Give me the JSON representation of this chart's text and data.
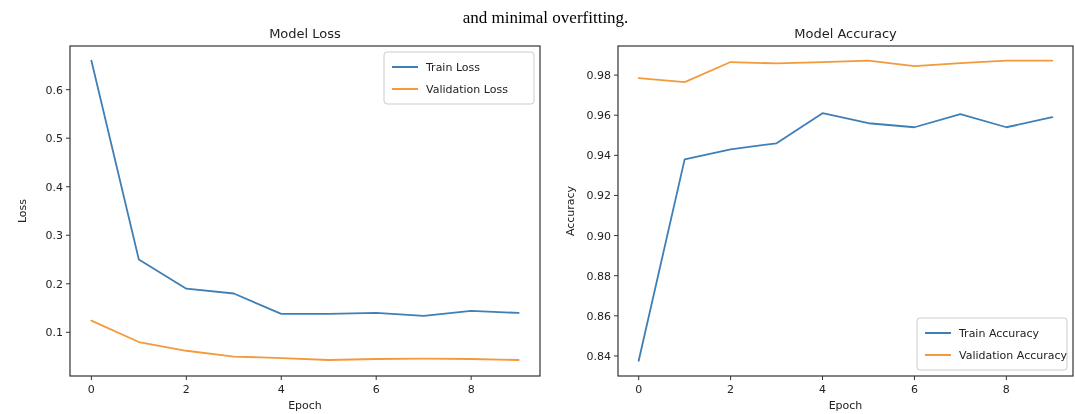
{
  "chart_data": [
    {
      "type": "line",
      "title": "Model Loss",
      "xlabel": "Epoch",
      "ylabel": "Loss",
      "annotations": [
        "and minimal overfitting."
      ],
      "x": [
        0,
        1,
        2,
        3,
        4,
        5,
        6,
        7,
        8,
        9
      ],
      "xlim": [
        -0.45,
        9.45
      ],
      "xticks": [
        0,
        2,
        4,
        6,
        8
      ],
      "ylim": [
        0.01,
        0.69
      ],
      "yticks": [
        0.1,
        0.2,
        0.3,
        0.4,
        0.5,
        0.6
      ],
      "legend": "top right",
      "grid": false,
      "series": [
        {
          "name": "Train Loss",
          "color": "#3f7fb5",
          "values": [
            0.66,
            0.25,
            0.19,
            0.18,
            0.138,
            0.138,
            0.14,
            0.134,
            0.144,
            0.14
          ]
        },
        {
          "name": "Validation Loss",
          "color": "#f39a3c",
          "values": [
            0.124,
            0.08,
            0.062,
            0.05,
            0.047,
            0.043,
            0.045,
            0.046,
            0.045,
            0.043
          ]
        }
      ]
    },
    {
      "type": "line",
      "title": "Model Accuracy",
      "xlabel": "Epoch",
      "ylabel": "Accuracy",
      "x": [
        0,
        1,
        2,
        3,
        4,
        5,
        6,
        7,
        8,
        9
      ],
      "xlim": [
        -0.45,
        9.45
      ],
      "xticks": [
        0,
        2,
        4,
        6,
        8
      ],
      "ylim": [
        0.83,
        0.9945
      ],
      "yticks": [
        {
          "value": 0.84,
          "label": "0.84"
        },
        {
          "value": 0.86,
          "label": "0.86"
        },
        {
          "value": 0.88,
          "label": "0.88"
        },
        {
          "value": 0.9,
          "label": "0.90"
        },
        {
          "value": 0.92,
          "label": "0.92"
        },
        {
          "value": 0.94,
          "label": "0.94"
        },
        {
          "value": 0.96,
          "label": "0.96"
        },
        {
          "value": 0.98,
          "label": "0.98"
        }
      ],
      "legend": "bottom right",
      "grid": false,
      "series": [
        {
          "name": "Train Accuracy",
          "color": "#3f7fb5",
          "values": [
            0.8376,
            0.938,
            0.943,
            0.946,
            0.961,
            0.956,
            0.954,
            0.9605,
            0.954,
            0.959
          ]
        },
        {
          "name": "Validation Accuracy",
          "color": "#f39a3c",
          "values": [
            0.9785,
            0.9765,
            0.9865,
            0.9858,
            0.9865,
            0.9872,
            0.9845,
            0.986,
            0.9872,
            0.9872
          ]
        }
      ]
    }
  ]
}
